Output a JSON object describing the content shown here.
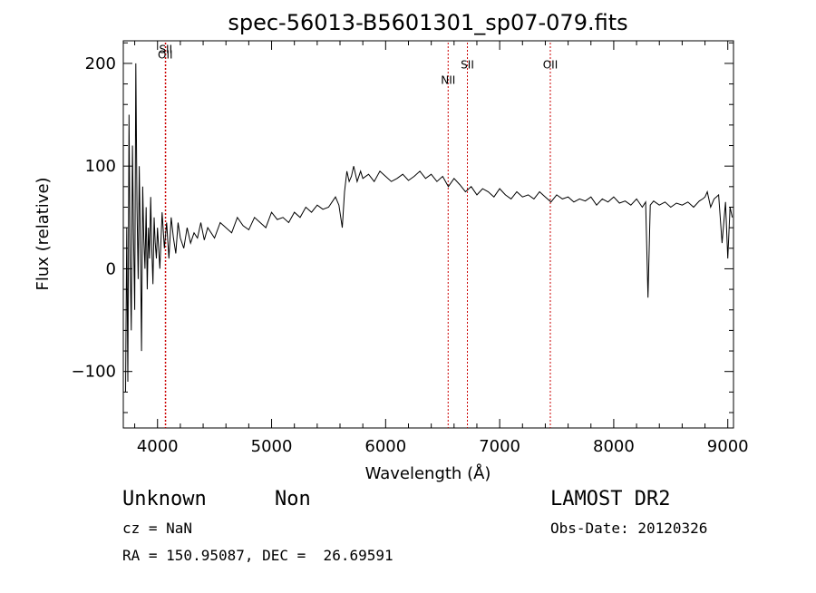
{
  "chart_data": {
    "type": "line",
    "title": "spec-56013-B5601301_sp07-079.fits",
    "xlabel": "Wavelength (Å)",
    "ylabel": "Flux (relative)",
    "xlim": [
      3700,
      9050
    ],
    "ylim": [
      -155,
      222
    ],
    "xticks": [
      {
        "value": 4000,
        "label": "4000"
      },
      {
        "value": 5000,
        "label": "5000"
      },
      {
        "value": 6000,
        "label": "6000"
      },
      {
        "value": 7000,
        "label": "7000"
      },
      {
        "value": 8000,
        "label": "8000"
      },
      {
        "value": 9000,
        "label": "9000"
      }
    ],
    "yticks": [
      {
        "value": -100,
        "label": "−100"
      },
      {
        "value": 0,
        "label": "0"
      },
      {
        "value": 100,
        "label": "100"
      },
      {
        "value": 200,
        "label": "200"
      }
    ],
    "grid": false,
    "lines": [
      {
        "label": "OII",
        "x": 4068,
        "label_y": 205
      },
      {
        "label": "SII",
        "x": 4072,
        "label_y": 210
      },
      {
        "label": "NII",
        "x": 6548,
        "label_y": 180
      },
      {
        "label": "SII",
        "x": 6717,
        "label_y": 195
      },
      {
        "label": "OII",
        "x": 7444,
        "label_y": 195
      }
    ],
    "line_colors": {
      "spectrum": "#000000",
      "marker": "#cc0000"
    },
    "series": [
      {
        "x": [
          3720,
          3730,
          3740,
          3750,
          3760,
          3770,
          3780,
          3790,
          3800,
          3810,
          3820,
          3830,
          3840,
          3850,
          3860,
          3870,
          3880,
          3890,
          3900,
          3910,
          3920,
          3930,
          3940,
          3950,
          3960,
          3970,
          3980,
          3990,
          4000,
          4020,
          4040,
          4060,
          4080,
          4100,
          4120,
          4140,
          4160,
          4180,
          4200,
          4230,
          4260,
          4290,
          4320,
          4350,
          4380,
          4410,
          4440,
          4470,
          4500,
          4550,
          4600,
          4650,
          4700,
          4750,
          4800,
          4850,
          4900,
          4950,
          5000,
          5050,
          5100,
          5150,
          5200,
          5250,
          5300,
          5350,
          5400,
          5450,
          5500,
          5530,
          5560,
          5590,
          5620,
          5640,
          5660,
          5680,
          5700,
          5720,
          5750,
          5780,
          5800,
          5850,
          5900,
          5950,
          6000,
          6050,
          6100,
          6150,
          6200,
          6250,
          6300,
          6350,
          6400,
          6450,
          6500,
          6550,
          6600,
          6650,
          6700,
          6750,
          6800,
          6850,
          6900,
          6950,
          7000,
          7050,
          7100,
          7150,
          7200,
          7250,
          7300,
          7350,
          7400,
          7450,
          7500,
          7550,
          7600,
          7650,
          7700,
          7750,
          7800,
          7850,
          7900,
          7950,
          8000,
          8050,
          8100,
          8150,
          8200,
          8250,
          8280,
          8300,
          8320,
          8350,
          8400,
          8450,
          8500,
          8550,
          8600,
          8650,
          8700,
          8750,
          8780,
          8800,
          8820,
          8850,
          8880,
          8900,
          8920,
          8950,
          8980,
          9000,
          9020,
          9040
        ],
        "y": [
          -120,
          40,
          -110,
          150,
          10,
          -60,
          120,
          30,
          -40,
          200,
          60,
          -10,
          100,
          20,
          -80,
          80,
          30,
          0,
          60,
          -20,
          40,
          10,
          70,
          20,
          -15,
          50,
          25,
          10,
          40,
          0,
          55,
          20,
          45,
          10,
          50,
          30,
          15,
          45,
          30,
          20,
          40,
          25,
          35,
          30,
          45,
          28,
          40,
          35,
          30,
          45,
          40,
          35,
          50,
          42,
          38,
          50,
          45,
          40,
          55,
          48,
          50,
          45,
          55,
          50,
          60,
          55,
          62,
          58,
          60,
          65,
          70,
          62,
          40,
          75,
          95,
          85,
          90,
          100,
          85,
          95,
          88,
          92,
          85,
          95,
          90,
          85,
          88,
          92,
          86,
          90,
          95,
          88,
          92,
          85,
          90,
          80,
          88,
          82,
          75,
          80,
          72,
          78,
          75,
          70,
          78,
          72,
          68,
          75,
          70,
          72,
          68,
          75,
          70,
          65,
          72,
          68,
          70,
          65,
          68,
          66,
          70,
          62,
          68,
          65,
          70,
          64,
          66,
          62,
          68,
          60,
          65,
          -28,
          62,
          66,
          62,
          65,
          60,
          64,
          62,
          65,
          60,
          66,
          68,
          70,
          75,
          60,
          68,
          70,
          72,
          25,
          65,
          10,
          60,
          50
        ]
      }
    ]
  },
  "info": {
    "object_class": "Unknown",
    "subclass": "Non",
    "cz": "cz = NaN",
    "radec": "RA = 150.95087, DEC =  26.69591",
    "survey": "LAMOST DR2",
    "obs_date": "Obs-Date: 20120326"
  }
}
